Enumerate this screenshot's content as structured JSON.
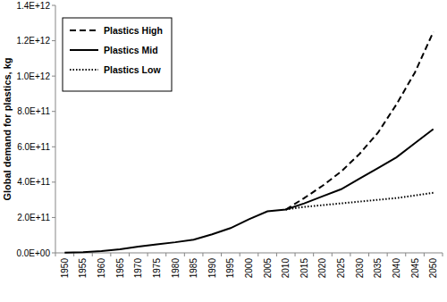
{
  "chart_data": {
    "type": "line",
    "y_label": "Global demand for plastics, kg",
    "categories": [
      "1950",
      "1955",
      "1960",
      "1965",
      "1970",
      "1975",
      "1980",
      "1985",
      "1990",
      "1995",
      "2000",
      "2005",
      "2010",
      "2015",
      "2020",
      "2025",
      "2030",
      "2035",
      "2040",
      "2045",
      "2050"
    ],
    "series": [
      {
        "name": "Plastics High",
        "color": "#000000",
        "line_style": "dashed",
        "values": [
          null,
          null,
          null,
          null,
          null,
          null,
          null,
          null,
          null,
          null,
          null,
          null,
          245000000000,
          310000000000,
          380000000000,
          460000000000,
          560000000000,
          680000000000,
          840000000000,
          1020000000000,
          1250000000000
        ]
      },
      {
        "name": "Plastics Mid",
        "color": "#000000",
        "line_style": "solid",
        "values": [
          1500000000,
          4000000000,
          10000000000,
          20000000000,
          35000000000,
          48000000000,
          60000000000,
          75000000000,
          105000000000,
          140000000000,
          190000000000,
          235000000000,
          245000000000,
          280000000000,
          320000000000,
          360000000000,
          420000000000,
          480000000000,
          540000000000,
          620000000000,
          700000000000
        ]
      },
      {
        "name": "Plastics Low",
        "color": "#000000",
        "line_style": "dotted",
        "values": [
          null,
          null,
          null,
          null,
          null,
          null,
          null,
          null,
          null,
          null,
          null,
          null,
          245000000000,
          260000000000,
          270000000000,
          280000000000,
          290000000000,
          300000000000,
          310000000000,
          325000000000,
          340000000000
        ]
      }
    ],
    "ylim": [
      0,
      1400000000000
    ],
    "yticks": [
      {
        "value": 0,
        "label": "0.0E+00"
      },
      {
        "value": 200000000000,
        "label": "2.0E+11"
      },
      {
        "value": 400000000000,
        "label": "4.0E+11"
      },
      {
        "value": 600000000000,
        "label": "6.0E+11"
      },
      {
        "value": 800000000000,
        "label": "8.0E+11"
      },
      {
        "value": 1000000000000,
        "label": "1.0E+12"
      },
      {
        "value": 1200000000000,
        "label": "1.2E+12"
      },
      {
        "value": 1400000000000,
        "label": "1.4E+12"
      }
    ],
    "grid": false,
    "legend": "upper-left"
  }
}
